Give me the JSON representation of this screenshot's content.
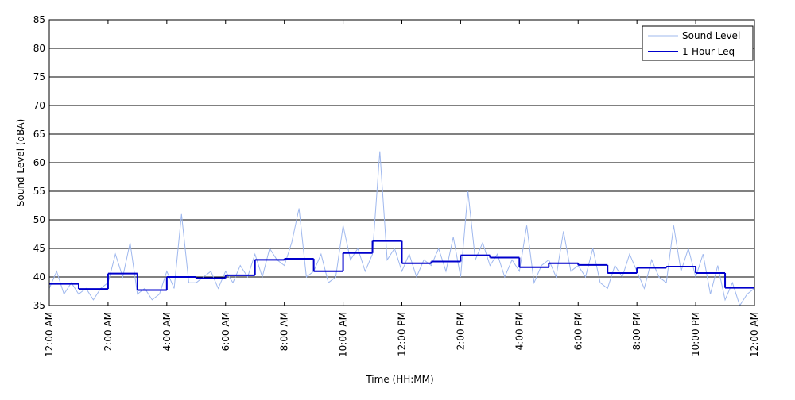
{
  "chart_data": {
    "type": "line",
    "xlabel": "Time (HH:MM)",
    "ylabel": "Sound Level (dBA)",
    "xlim": [
      0,
      24
    ],
    "ylim": [
      35,
      85
    ],
    "xticks": [
      {
        "value": 0,
        "label": "12:00 AM"
      },
      {
        "value": 2,
        "label": "2:00 AM"
      },
      {
        "value": 4,
        "label": "4:00 AM"
      },
      {
        "value": 6,
        "label": "6:00 AM"
      },
      {
        "value": 8,
        "label": "8:00 AM"
      },
      {
        "value": 10,
        "label": "10:00 AM"
      },
      {
        "value": 12,
        "label": "12:00 PM"
      },
      {
        "value": 14,
        "label": "2:00 PM"
      },
      {
        "value": 16,
        "label": "4:00 PM"
      },
      {
        "value": 18,
        "label": "6:00 PM"
      },
      {
        "value": 20,
        "label": "8:00 PM"
      },
      {
        "value": 22,
        "label": "10:00 PM"
      },
      {
        "value": 24,
        "label": "12:00 AM"
      }
    ],
    "yticks": [
      35,
      40,
      45,
      50,
      55,
      60,
      65,
      70,
      75,
      80,
      85
    ],
    "grid": true,
    "legend": "upper right",
    "x": [
      0,
      0.25,
      0.5,
      0.75,
      1,
      1.25,
      1.5,
      1.75,
      2,
      2.25,
      2.5,
      2.75,
      3,
      3.25,
      3.5,
      3.75,
      4,
      4.25,
      4.5,
      4.75,
      5,
      5.25,
      5.5,
      5.75,
      6,
      6.25,
      6.5,
      6.75,
      7,
      7.25,
      7.5,
      7.75,
      8,
      8.25,
      8.5,
      8.75,
      9,
      9.25,
      9.5,
      9.75,
      10,
      10.25,
      10.5,
      10.75,
      11,
      11.25,
      11.5,
      11.75,
      12,
      12.25,
      12.5,
      12.75,
      13,
      13.25,
      13.5,
      13.75,
      14,
      14.25,
      14.5,
      14.75,
      15,
      15.25,
      15.5,
      15.75,
      16,
      16.25,
      16.5,
      16.75,
      17,
      17.25,
      17.5,
      17.75,
      18,
      18.25,
      18.5,
      18.75,
      19,
      19.25,
      19.5,
      19.75,
      20,
      20.25,
      20.5,
      20.75,
      21,
      21.25,
      21.5,
      21.75,
      22,
      22.25,
      22.5,
      22.75,
      23,
      23.25,
      23.5,
      23.75,
      24
    ],
    "series": [
      {
        "name": "Sound Level",
        "color": "#9fb8ee",
        "style": "line",
        "values": [
          38,
          41,
          37,
          39,
          37,
          38,
          36,
          38,
          39,
          44,
          40,
          46,
          37,
          38,
          36,
          37,
          41,
          38,
          51,
          39,
          39,
          40,
          41,
          38,
          41,
          39,
          42,
          40,
          44,
          40,
          45,
          43,
          42,
          46,
          52,
          40,
          41,
          44,
          39,
          40,
          49,
          43,
          45,
          41,
          44,
          62,
          43,
          45,
          41,
          44,
          40,
          43,
          42,
          45,
          41,
          47,
          40,
          55,
          43,
          46,
          42,
          44,
          40,
          43,
          41,
          49,
          39,
          42,
          43,
          40,
          48,
          41,
          42,
          40,
          45,
          39,
          38,
          42,
          40,
          44,
          41,
          38,
          43,
          40,
          39,
          49,
          41,
          45,
          40,
          44,
          37,
          42,
          36,
          39,
          35,
          37,
          38
        ]
      },
      {
        "name": "1-Hour Leq",
        "color": "#0000cc",
        "style": "step",
        "x": [
          0,
          1,
          2,
          3,
          4,
          5,
          6,
          7,
          8,
          9,
          10,
          11,
          12,
          13,
          14,
          15,
          16,
          17,
          18,
          19,
          20,
          21,
          22,
          23
        ],
        "values": [
          38.8,
          37.9,
          40.6,
          37.7,
          40.0,
          39.8,
          40.3,
          43.0,
          43.2,
          41.0,
          44.2,
          46.3,
          42.4,
          42.7,
          43.8,
          43.4,
          41.7,
          42.4,
          42.1,
          40.7,
          41.6,
          41.8,
          40.7,
          38.1
        ]
      }
    ]
  }
}
